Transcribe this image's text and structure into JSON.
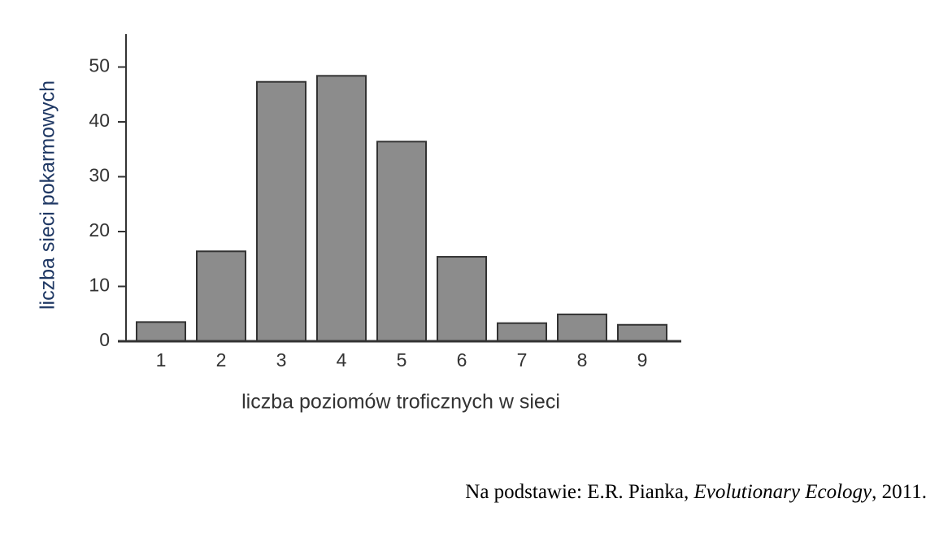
{
  "chart_data": {
    "type": "bar",
    "x_label": "liczba poziomów troficznych w sieci",
    "y_label": "liczba sieci pokarmowych",
    "categories": [
      "1",
      "2",
      "3",
      "4",
      "5",
      "6",
      "7",
      "8",
      "9"
    ],
    "values": [
      3.5,
      16.4,
      47.3,
      48.4,
      36.4,
      15.4,
      3.3,
      4.9,
      3.0
    ],
    "color": "#8c8c8c",
    "ylim": [
      0,
      56
    ],
    "yticks": [
      0,
      10,
      20,
      30,
      40,
      50
    ],
    "grid": false
  },
  "source": {
    "prefix": "Na podstawie: E.R. Pianka, ",
    "title": "Evolutionary Ecology",
    "suffix": ", 2011."
  }
}
